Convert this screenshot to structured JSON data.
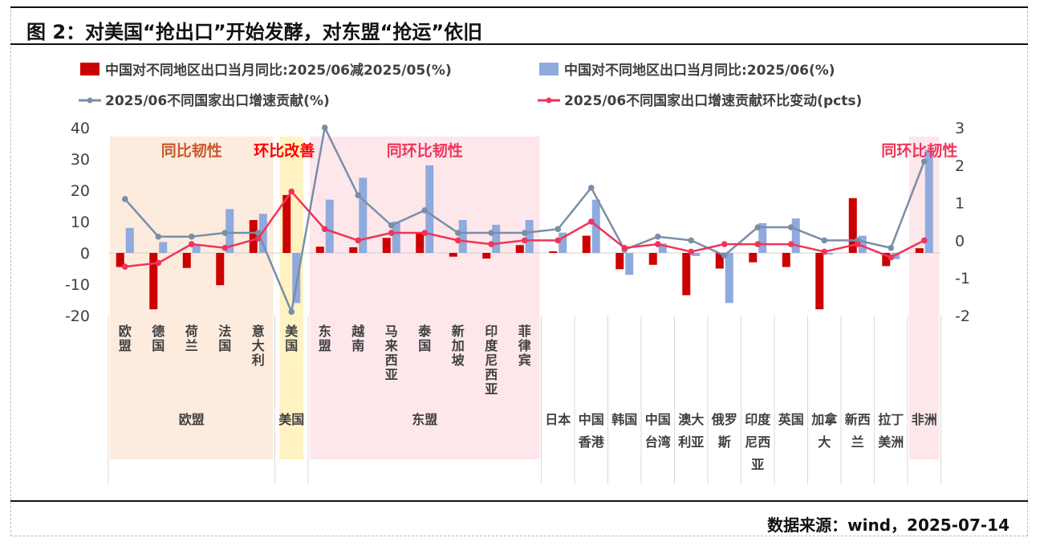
{
  "header": {
    "title": "图 2：对美国“抢出口”开始发酵，对东盟“抢运”依旧"
  },
  "footer": {
    "source": "数据来源：wind，2025-07-14"
  },
  "legend": {
    "s1": "中国对不同地区出口当月同比:2025/06减2025/05(%)",
    "s2": "中国对不同地区出口当月同比:2025/06(%)",
    "s3": "2025/06不同国家出口增速贡献(%)",
    "s4": "2025/06不同国家出口增速贡献环比变动(pcts)"
  },
  "colors": {
    "red": "#cc0000",
    "blue": "#8faadc",
    "gray": "#7a8ea8",
    "pink": "#f0345a"
  },
  "annotations": [
    {
      "text": "同比韧性",
      "color": "#c65a2a"
    },
    {
      "text": "环比改善",
      "color": "#ff0000"
    },
    {
      "text": "同环比韧性",
      "color": "#f0345a"
    },
    {
      "text": "同环比韧性",
      "color": "#f0345a"
    }
  ],
  "groups": [
    "欧盟",
    "美国",
    "东盟"
  ],
  "chart_data": {
    "type": "bar",
    "categories": [
      "欧盟",
      "德国",
      "荷兰",
      "法国",
      "意大利",
      "美国",
      "东盟",
      "越南",
      "马来西亚",
      "泰国",
      "新加坡",
      "印度尼西亚",
      "菲律宾",
      "日本",
      "中国香港",
      "韩国",
      "中国台湾",
      "澳大利亚",
      "俄罗斯",
      "印度尼西亚",
      "英国",
      "加拿大",
      "新西兰",
      "拉丁美洲",
      "非洲"
    ],
    "left_axis": {
      "ylim": [
        -20,
        40
      ],
      "ticks": [
        -20,
        -10,
        0,
        10,
        20,
        30,
        40
      ]
    },
    "right_axis": {
      "ylim": [
        -2,
        3
      ],
      "ticks": [
        -2,
        -1,
        0,
        1,
        2,
        3
      ]
    },
    "series": [
      {
        "name": "中国对不同地区出口当月同比:2025/06减2025/05(%)",
        "type": "bar",
        "axis": "left",
        "values": [
          -4.5,
          -18,
          -4.8,
          -10.3,
          10.5,
          18.5,
          2,
          1.8,
          4.8,
          6.5,
          -1.2,
          -1.8,
          2.5,
          0.5,
          5.5,
          -5.2,
          -3.8,
          -13.5,
          -5,
          -3,
          -4.5,
          -18,
          17.5,
          -4.2,
          1.5
        ]
      },
      {
        "name": "中国对不同地区出口当月同比:2025/06(%)",
        "type": "bar",
        "axis": "left",
        "values": [
          8,
          3.5,
          2.5,
          14,
          12.5,
          -16,
          17,
          24,
          10,
          28,
          10.5,
          9,
          10.5,
          6.5,
          17,
          -7,
          3,
          -1,
          -16,
          9.5,
          11,
          -0.5,
          5.5,
          -2,
          33
        ]
      },
      {
        "name": "2025/06不同国家出口增速贡献(%)",
        "type": "line",
        "axis": "right",
        "values": [
          1.1,
          0.1,
          0.1,
          0.2,
          0.2,
          -1.9,
          3,
          1.2,
          0.4,
          0.8,
          0.2,
          0.2,
          0.2,
          0.3,
          1.4,
          -0.25,
          0.1,
          0,
          -0.4,
          0.35,
          0.35,
          0,
          0,
          -0.2,
          2.1
        ]
      },
      {
        "name": "2025/06不同国家出口增速贡献环比变动(pcts)",
        "type": "line",
        "axis": "right",
        "values": [
          -0.7,
          -0.6,
          -0.1,
          -0.2,
          0.05,
          1.3,
          0.3,
          0,
          0.2,
          0.2,
          0,
          -0.1,
          0,
          0,
          0.5,
          -0.2,
          -0.1,
          -0.3,
          -0.1,
          -0.1,
          -0.1,
          -0.3,
          -0.1,
          -0.45,
          0
        ]
      }
    ]
  }
}
